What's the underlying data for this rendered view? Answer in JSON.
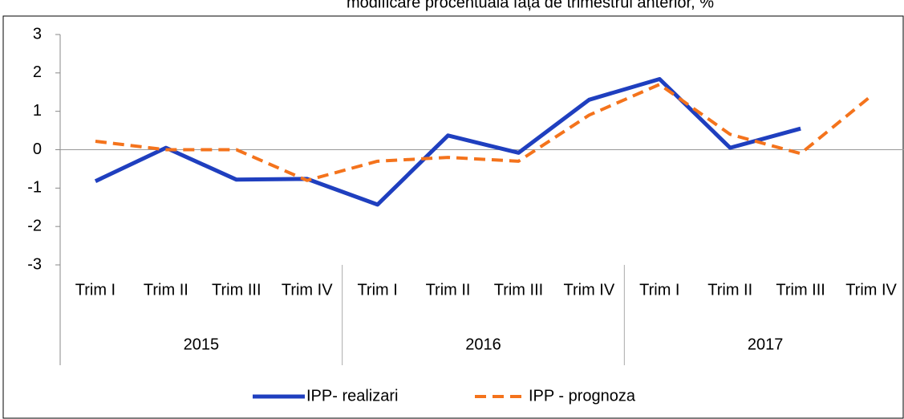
{
  "chart_data": {
    "type": "line",
    "title": "modificare procentuala fața de trimestrul anterior, %",
    "categories": [
      "Trim I",
      "Trim II",
      "Trim III",
      "Trim IV",
      "Trim I",
      "Trim II",
      "Trim III",
      "Trim IV",
      "Trim I",
      "Trim II",
      "Trim III",
      "Trim IV"
    ],
    "groups": [
      "2015",
      "2016",
      "2017"
    ],
    "series": [
      {
        "name": "IPP- realizari",
        "color": "#1f3fbf",
        "dash": false,
        "values": [
          -0.82,
          0.05,
          -0.78,
          -0.76,
          -1.43,
          0.37,
          -0.08,
          1.3,
          1.84,
          0.05,
          0.55,
          null
        ]
      },
      {
        "name": "IPP - prognoza",
        "color": "#f4731c",
        "dash": true,
        "values": [
          0.22,
          0.0,
          0.0,
          -0.8,
          -0.3,
          -0.2,
          -0.3,
          0.9,
          1.7,
          0.4,
          -0.1,
          1.4
        ]
      }
    ],
    "ylim": [
      -3,
      3
    ],
    "yticks": [
      -3,
      -2,
      -1,
      0,
      1,
      2,
      3
    ],
    "grid": false,
    "legend": "bottom"
  }
}
